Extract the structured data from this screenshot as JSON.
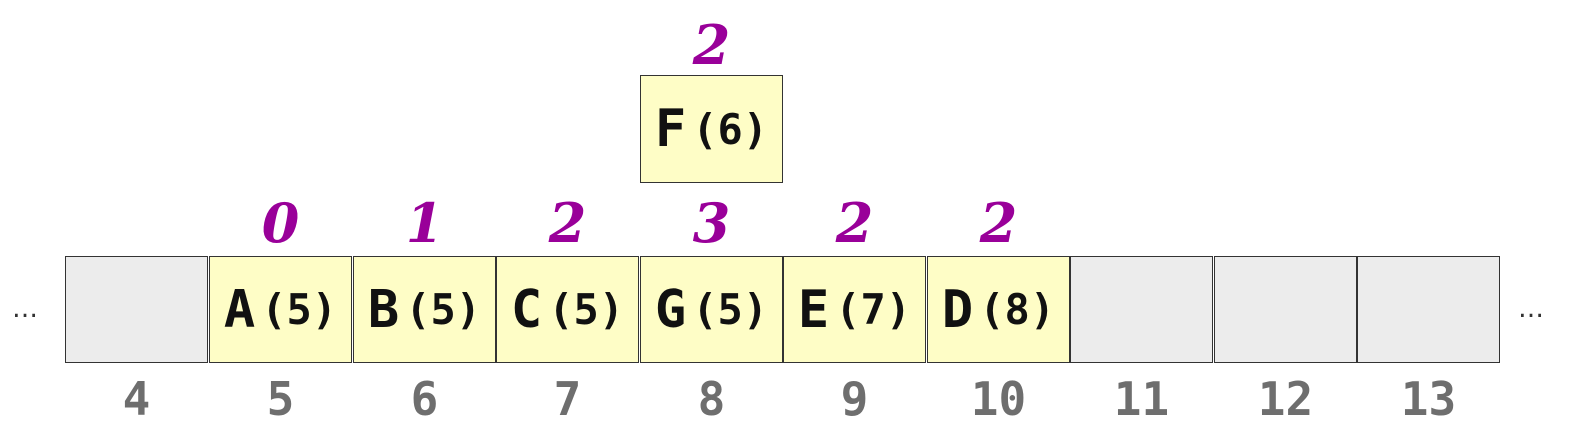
{
  "ellipsis_left": "…",
  "ellipsis_right": "…",
  "slots": [
    {
      "index": "4",
      "key": "",
      "priority": "",
      "distance": ""
    },
    {
      "index": "5",
      "key": "A",
      "priority": "(5)",
      "distance": "0"
    },
    {
      "index": "6",
      "key": "B",
      "priority": "(5)",
      "distance": "1"
    },
    {
      "index": "7",
      "key": "C",
      "priority": "(5)",
      "distance": "2"
    },
    {
      "index": "8",
      "key": "G",
      "priority": "(5)",
      "distance": "3"
    },
    {
      "index": "9",
      "key": "E",
      "priority": "(7)",
      "distance": "2"
    },
    {
      "index": "10",
      "key": "D",
      "priority": "(8)",
      "distance": "2"
    },
    {
      "index": "11",
      "key": "",
      "priority": "",
      "distance": ""
    },
    {
      "index": "12",
      "key": "",
      "priority": "",
      "distance": ""
    },
    {
      "index": "13",
      "key": "",
      "priority": "",
      "distance": ""
    }
  ],
  "floating": {
    "key": "F",
    "priority": "(6)",
    "distance": "2"
  },
  "colors": {
    "filled": "#fefdc6",
    "empty": "#ececec",
    "distance": "#990099",
    "index": "#6e6e6e"
  }
}
